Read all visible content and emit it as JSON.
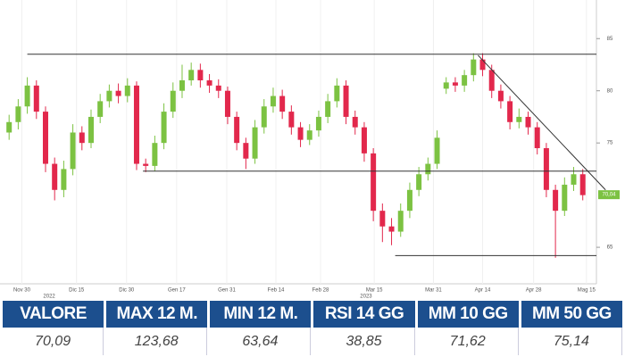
{
  "chart_data": {
    "type": "candlestick",
    "up_color": "#7cc242",
    "down_color": "#e2284c",
    "open": [
      76,
      77,
      78.5,
      80.5,
      78,
      73,
      70.5,
      72.5,
      76,
      75,
      77.5,
      79,
      80,
      79.5,
      80.5,
      73,
      72.8,
      75,
      78,
      80,
      81,
      82,
      81,
      80.5,
      80,
      77.5,
      75,
      73.5,
      76.5,
      78.5,
      79.5,
      78,
      76.5,
      75.3,
      76.2,
      77.5,
      79,
      80.5,
      77.5,
      76.5,
      74,
      68.5,
      67,
      66.5,
      68.5,
      70.5,
      72,
      73,
      80.2,
      80.8,
      80.5,
      81.5,
      83,
      82,
      80,
      79,
      77,
      77.5,
      76.5,
      74.5,
      70.5,
      68.5,
      71,
      72
    ],
    "high": [
      77.7,
      79.2,
      81.3,
      81,
      78.5,
      73.6,
      73.3,
      76.8,
      76.6,
      78.2,
      79.7,
      80.6,
      80.7,
      81.2,
      80.9,
      73.5,
      75.7,
      78.8,
      80.8,
      82.5,
      82.7,
      82.6,
      81.6,
      81.1,
      80.4,
      78,
      75.5,
      77.2,
      79.2,
      80.3,
      80.1,
      78.6,
      77,
      76.8,
      78.1,
      79.7,
      81.2,
      81,
      78.1,
      77,
      74.5,
      69.2,
      67.8,
      69.2,
      71.2,
      72.7,
      73.6,
      76.2,
      81.3,
      81.3,
      82,
      83.6,
      83.6,
      82.5,
      80.6,
      79.5,
      78.3,
      78,
      77,
      75,
      71,
      71.7,
      72.7,
      72.5
    ],
    "low": [
      75.3,
      76.3,
      77.8,
      77.3,
      72.2,
      69.5,
      69.8,
      71.9,
      74.3,
      74.5,
      76.9,
      78.4,
      78.8,
      78.9,
      72.4,
      72.2,
      72.3,
      74.4,
      77.4,
      79.3,
      80.5,
      80.3,
      79.8,
      79.3,
      76.8,
      74.3,
      72.5,
      73,
      75.9,
      77.9,
      77.3,
      75.8,
      74.6,
      74.8,
      75.6,
      76.9,
      78.4,
      76.8,
      75.8,
      73.2,
      67.5,
      65.5,
      65.2,
      66,
      67.8,
      69.9,
      71.4,
      72.5,
      79.7,
      79.9,
      79.9,
      80.9,
      81.4,
      79.3,
      78.3,
      76.3,
      76.4,
      75.8,
      73.9,
      69.8,
      64,
      68,
      70.4,
      69.5
    ],
    "close": [
      77,
      78.5,
      80.5,
      78,
      73,
      70.5,
      72.5,
      76,
      75,
      77.5,
      79,
      80,
      79.5,
      80.5,
      73,
      72.8,
      75,
      78,
      80,
      81,
      82,
      81,
      80.5,
      80,
      77.5,
      75,
      73.5,
      76.5,
      78.5,
      79.5,
      78,
      76.5,
      75.3,
      76.2,
      77.5,
      79,
      80.5,
      77.5,
      76.5,
      74,
      68.5,
      67,
      66.5,
      68.5,
      70.5,
      72,
      73,
      75.5,
      80.8,
      80.5,
      81.5,
      83,
      82,
      80,
      79,
      77,
      77.5,
      76.5,
      74.5,
      70.5,
      68.5,
      71,
      72,
      70
    ],
    "xlim": [
      -1,
      64.5
    ],
    "xticks": [
      {
        "value": 1.4,
        "label": "Nov 30"
      },
      {
        "value": 7.4,
        "label": "Dic 15"
      },
      {
        "value": 12.9,
        "label": "Dic 30"
      },
      {
        "value": 18.4,
        "label": "Gen 17"
      },
      {
        "value": 23.9,
        "label": "Gen 31"
      },
      {
        "value": 29.3,
        "label": "Feb 14"
      },
      {
        "value": 34.2,
        "label": "Feb 28"
      },
      {
        "value": 40.1,
        "label": "Mar 15"
      },
      {
        "value": 46.6,
        "label": "Mar 31"
      },
      {
        "value": 52,
        "label": "Apr 14"
      },
      {
        "value": 57.6,
        "label": "Apr 28"
      },
      {
        "value": 63.4,
        "label": "Mag 15"
      }
    ],
    "year_labels": [
      {
        "value": 4.4,
        "label": "2022"
      },
      {
        "value": 39.2,
        "label": "2023"
      }
    ],
    "ylim": [
      61.5,
      88.7
    ],
    "yticks": [
      65,
      75,
      80,
      85
    ],
    "levels": [
      {
        "from": 2,
        "value": 83.5
      },
      {
        "from": 14.7,
        "value": 72.3
      },
      {
        "from": 42.4,
        "value": 64.2
      }
    ],
    "trend": {
      "from": [
        51.5,
        83.4
      ],
      "to": [
        65.5,
        70.5
      ]
    },
    "last_price": {
      "value": 70.04,
      "label": "70,04"
    }
  },
  "table": {
    "headers": [
      "VALORE",
      "MAX 12 M.",
      "MIN 12 M.",
      "RSI 14 GG",
      "MM 10 GG",
      "MM 50 GG"
    ],
    "values": [
      "70,09",
      "123,68",
      "63,64",
      "38,85",
      "71,62",
      "75,14"
    ]
  }
}
